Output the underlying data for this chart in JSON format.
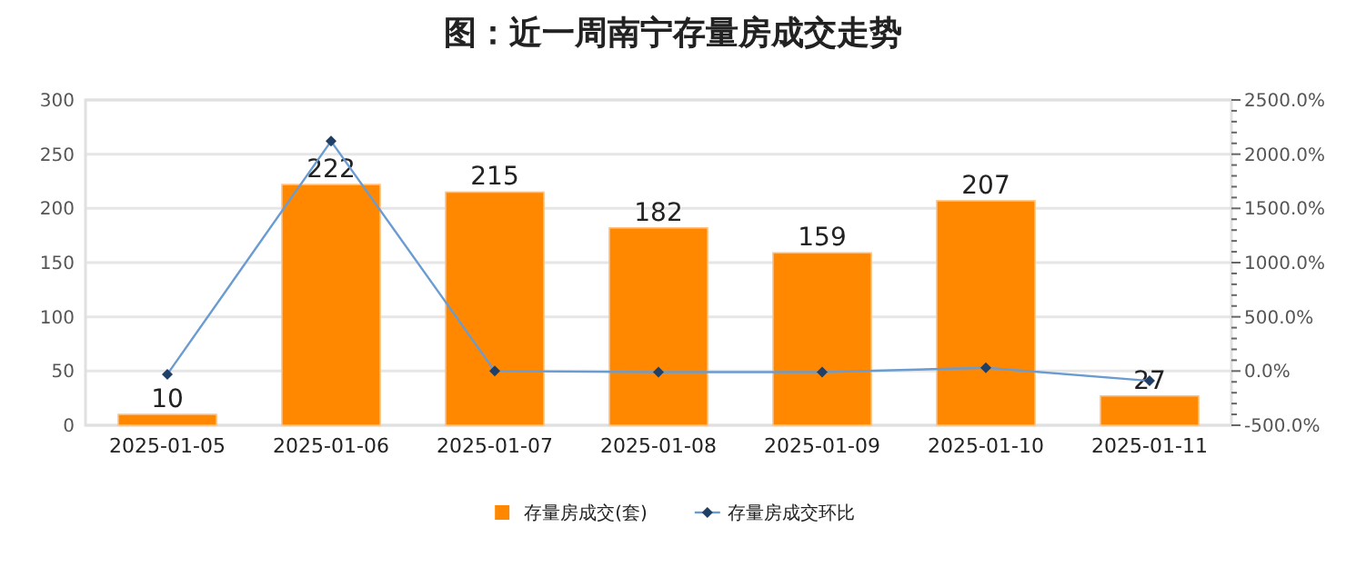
{
  "chart_data": {
    "type": "bar",
    "title": "图：近一周南宁存量房成交走势",
    "categories": [
      "2025-01-05",
      "2025-01-06",
      "2025-01-07",
      "2025-01-08",
      "2025-01-09",
      "2025-01-10",
      "2025-01-11"
    ],
    "series": [
      {
        "name": "存量房成交(套)",
        "color": "#ff8800",
        "values": [
          10,
          222,
          215,
          182,
          159,
          207,
          27
        ],
        "value_labels": [
          "10",
          "222",
          "215",
          "182",
          "159",
          "207",
          "27"
        ]
      },
      {
        "name": "存量房成交环比",
        "type": "line",
        "axis": "y2",
        "color": "#6a9bd1",
        "marker": "diamond",
        "values": [
          -30,
          2120,
          0,
          -10,
          -10,
          30,
          -90
        ]
      }
    ],
    "ylim": [
      0,
      300
    ],
    "yticks": [
      0,
      50,
      100,
      150,
      200,
      250,
      300
    ],
    "y2lim": [
      -500,
      2500
    ],
    "y2ticks": [
      {
        "value": -500,
        "label": "-500.0%"
      },
      {
        "value": -400,
        "label": null
      },
      {
        "value": -300,
        "label": null
      },
      {
        "value": -200,
        "label": null
      },
      {
        "value": -100,
        "label": null
      },
      {
        "value": 0,
        "label": "0.0%"
      },
      {
        "value": 100,
        "label": null
      },
      {
        "value": 200,
        "label": null
      },
      {
        "value": 300,
        "label": null
      },
      {
        "value": 400,
        "label": null
      },
      {
        "value": 500,
        "label": "500.0%"
      },
      {
        "value": 600,
        "label": null
      },
      {
        "value": 700,
        "label": null
      },
      {
        "value": 800,
        "label": null
      },
      {
        "value": 900,
        "label": null
      },
      {
        "value": 1000,
        "label": "1000.0%"
      },
      {
        "value": 1100,
        "label": null
      },
      {
        "value": 1200,
        "label": null
      },
      {
        "value": 1300,
        "label": null
      },
      {
        "value": 1400,
        "label": null
      },
      {
        "value": 1500,
        "label": "1500.0%"
      },
      {
        "value": 1600,
        "label": null
      },
      {
        "value": 1700,
        "label": null
      },
      {
        "value": 1800,
        "label": null
      },
      {
        "value": 1900,
        "label": null
      },
      {
        "value": 2000,
        "label": "2000.0%"
      },
      {
        "value": 2100,
        "label": null
      },
      {
        "value": 2200,
        "label": null
      },
      {
        "value": 2300,
        "label": null
      },
      {
        "value": 2400,
        "label": null
      },
      {
        "value": 2500,
        "label": "2500.0%"
      }
    ],
    "grid": "y",
    "legend": "bottom"
  }
}
